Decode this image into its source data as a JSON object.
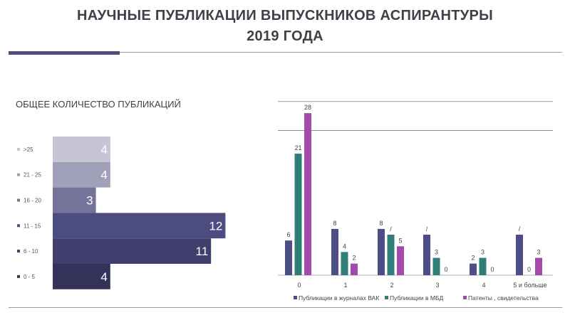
{
  "title": {
    "line1": "НАУЧНЫЕ ПУБЛИКАЦИИ ВЫПУСКНИКОВ АСПИРАНТУРЫ",
    "line2": "2019 ГОДА"
  },
  "left_chart_title": "ОБЩЕЕ КОЛИЧЕСТВО ПУБЛИКАЦИЙ",
  "colors": {
    "title": "#404049",
    "accent": "#4f4f7c",
    "series_vak": "#4e4e86",
    "series_mbd": "#2f7f78",
    "series_patents": "#a44aaa"
  },
  "chart_data": [
    {
      "type": "bar",
      "orientation": "horizontal",
      "title": "ОБЩЕЕ КОЛИЧЕСТВО ПУБЛИКАЦИЙ",
      "categories": [
        ">25",
        "21 - 25",
        "16 - 20",
        "11 - 15",
        "6 - 10",
        "0 - 5"
      ],
      "values": [
        4,
        4,
        3,
        12,
        11,
        4
      ],
      "colors": [
        "#c5c5d3",
        "#a0a0b8",
        "#74749a",
        "#4d4c80",
        "#3f3e6d",
        "#333259"
      ],
      "legend_position": "left",
      "data_labels": true
    },
    {
      "type": "bar",
      "orientation": "vertical",
      "categories": [
        "0",
        "1",
        "2",
        "3",
        "4",
        "5 и больше"
      ],
      "series": [
        {
          "name": "Публикации в журналах ВАК",
          "values": [
            6,
            8,
            8,
            7,
            2,
            7
          ],
          "labels": [
            "6",
            "8",
            "8",
            "/",
            "2",
            "/"
          ],
          "color": "#4e4e86"
        },
        {
          "name": "Публикации в МБД",
          "values": [
            21,
            4,
            7,
            3,
            3,
            0
          ],
          "labels": [
            "21",
            "4",
            "/",
            "3",
            "3",
            "0"
          ],
          "color": "#2f7f78"
        },
        {
          "name": "Патенты , свидетельства",
          "values": [
            28,
            2,
            5,
            0,
            0,
            3
          ],
          "labels": [
            "28",
            "2",
            "5",
            "0",
            "0",
            "3"
          ],
          "color": "#a44aaa"
        }
      ],
      "ylim": [
        0,
        30
      ],
      "gridlines": [
        25,
        30
      ],
      "legend_position": "bottom"
    }
  ]
}
